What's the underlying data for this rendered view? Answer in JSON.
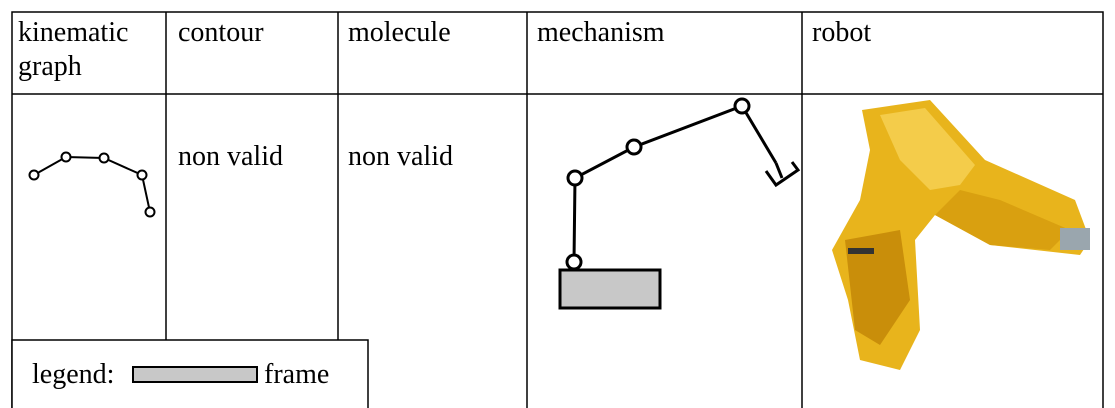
{
  "table": {
    "header": [
      "kinematic graph",
      "contour",
      "molecule",
      "mechanism",
      "robot"
    ],
    "body": {
      "contour": "non valid",
      "molecule": "non valid"
    }
  },
  "legend": {
    "label": "legend:",
    "item": "frame"
  }
}
